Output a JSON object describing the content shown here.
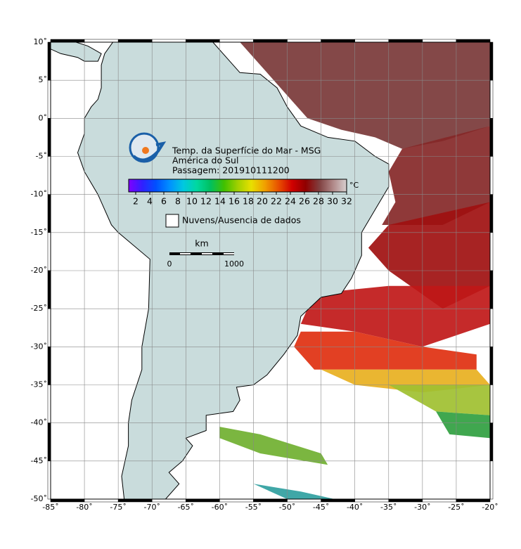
{
  "map": {
    "title_lines": [
      "Temp. da Superfície do Mar - MSG",
      "América do Sul",
      "Passagem: 201910111200"
    ],
    "xlim": [
      -85,
      -20
    ],
    "ylim": [
      -50,
      10
    ],
    "xticks": [
      {
        "value": -85,
        "label": "-85˚"
      },
      {
        "value": -80,
        "label": "-80˚"
      },
      {
        "value": -75,
        "label": "-75˚"
      },
      {
        "value": -70,
        "label": "-70˚"
      },
      {
        "value": -65,
        "label": "-65˚"
      },
      {
        "value": -60,
        "label": "-60˚"
      },
      {
        "value": -55,
        "label": "-55˚"
      },
      {
        "value": -50,
        "label": "-50˚"
      },
      {
        "value": -45,
        "label": "-45˚"
      },
      {
        "value": -40,
        "label": "-40˚"
      },
      {
        "value": -35,
        "label": "-35˚"
      },
      {
        "value": -30,
        "label": "-30˚"
      },
      {
        "value": -25,
        "label": "-25˚"
      },
      {
        "value": -20,
        "label": "-20˚"
      }
    ],
    "yticks": [
      {
        "value": 10,
        "label": "10˚"
      },
      {
        "value": 5,
        "label": "5˚"
      },
      {
        "value": 0,
        "label": "0˚"
      },
      {
        "value": -5,
        "label": "-5˚"
      },
      {
        "value": -10,
        "label": "-10˚"
      },
      {
        "value": -15,
        "label": "-15˚"
      },
      {
        "value": -20,
        "label": "-20˚"
      },
      {
        "value": -25,
        "label": "-25˚"
      },
      {
        "value": -30,
        "label": "-30˚"
      },
      {
        "value": -35,
        "label": "-35˚"
      },
      {
        "value": -40,
        "label": "-40˚"
      },
      {
        "value": -45,
        "label": "-45˚"
      },
      {
        "value": -50,
        "label": "-50˚"
      }
    ],
    "grid": true,
    "colorbar": {
      "unit": "°C",
      "lim": [
        1,
        32
      ],
      "ticks": [
        2,
        4,
        6,
        8,
        10,
        12,
        14,
        16,
        18,
        20,
        22,
        24,
        26,
        28,
        30,
        32
      ],
      "colors": [
        "#8000ff",
        "#3020ff",
        "#0050ff",
        "#0090ff",
        "#00c8e0",
        "#00d8a0",
        "#00c060",
        "#40c000",
        "#a0d000",
        "#e8e000",
        "#f0a000",
        "#e85000",
        "#d00000",
        "#900000",
        "#804040",
        "#b08888",
        "#d8d0d0"
      ]
    },
    "legend": "Nuvens/Ausencia de dados",
    "scale": {
      "unit": "km",
      "ticks": [
        0,
        1000
      ]
    }
  }
}
